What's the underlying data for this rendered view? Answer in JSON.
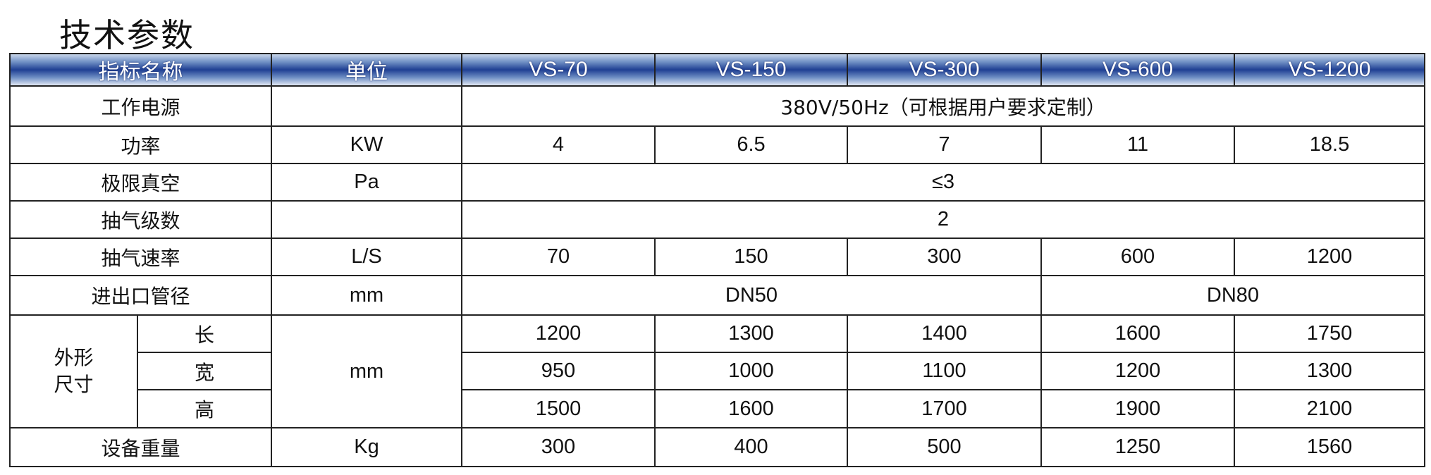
{
  "title": "技术参数",
  "header": [
    "指标名称",
    "单位",
    "VS-70",
    "VS-150",
    "VS-300",
    "VS-600",
    "VS-1200"
  ],
  "rows": {
    "power_supply": {
      "label": "工作电源",
      "unit": "",
      "value": "380V/50Hz（可根据用户要求定制）"
    },
    "power": {
      "label": "功率",
      "unit": "KW",
      "values": [
        "4",
        "6.5",
        "7",
        "11",
        "18.5"
      ]
    },
    "vacuum": {
      "label": "极限真空",
      "unit": "Pa",
      "value": "≤3"
    },
    "stages": {
      "label": "抽气级数",
      "unit": "",
      "value": "2"
    },
    "speed": {
      "label": "抽气速率",
      "unit": "L/S",
      "values": [
        "70",
        "150",
        "300",
        "600",
        "1200"
      ]
    },
    "port": {
      "label": "进出口管径",
      "unit": "mm",
      "value_a": "DN50",
      "value_b": "DN80"
    },
    "dims": {
      "label": "外形尺寸",
      "unit": "mm",
      "length": {
        "label": "长",
        "values": [
          "1200",
          "1300",
          "1400",
          "1600",
          "1750"
        ]
      },
      "width": {
        "label": "宽",
        "values": [
          "950",
          "1000",
          "1100",
          "1200",
          "1300"
        ]
      },
      "height": {
        "label": "高",
        "values": [
          "1500",
          "1600",
          "1700",
          "1900",
          "2100"
        ]
      }
    },
    "weight": {
      "label": "设备重量",
      "unit": "Kg",
      "values": [
        "300",
        "400",
        "500",
        "1250",
        "1560"
      ]
    }
  }
}
